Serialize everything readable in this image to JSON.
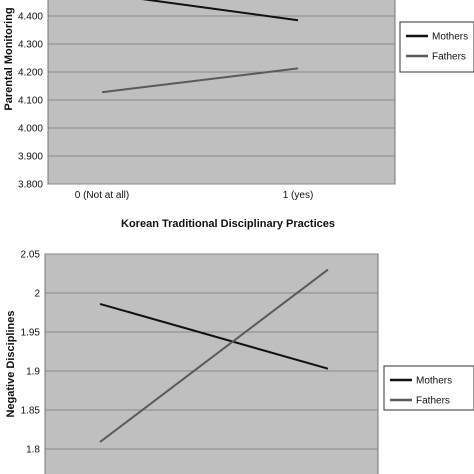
{
  "chart_data": [
    {
      "type": "line",
      "title": "",
      "xlabel": "Korean Traditional Disciplinary Practices",
      "ylabel": "Parental Monitoring",
      "categories": [
        "0 (Not at all)",
        "1 (yes)"
      ],
      "ylim": [
        3.8,
        4.5
      ],
      "yticks": [
        "3.800",
        "3.900",
        "4.000",
        "4.100",
        "4.200",
        "4.300",
        "4.400"
      ],
      "grid": true,
      "legend_position": "right",
      "series": [
        {
          "name": "Mothers",
          "values": [
            4.48,
            4.385
          ],
          "color": "#111111"
        },
        {
          "name": "Fathers",
          "values": [
            4.128,
            4.213
          ],
          "color": "#5a5a5a"
        }
      ]
    },
    {
      "type": "line",
      "title": "",
      "xlabel": "",
      "ylabel": "Negative Disciplines",
      "categories": [
        "",
        ""
      ],
      "ylim": [
        1.75,
        2.05
      ],
      "yticks": [
        "1.8",
        "1.85",
        "1.9",
        "1.95",
        "2",
        "2.05"
      ],
      "grid": true,
      "legend_position": "right",
      "series": [
        {
          "name": "Mothers",
          "values": [
            1.986,
            1.903
          ],
          "color": "#111111"
        },
        {
          "name": "Fathers",
          "values": [
            1.809,
            2.03
          ],
          "color": "#5a5a5a"
        }
      ]
    }
  ]
}
